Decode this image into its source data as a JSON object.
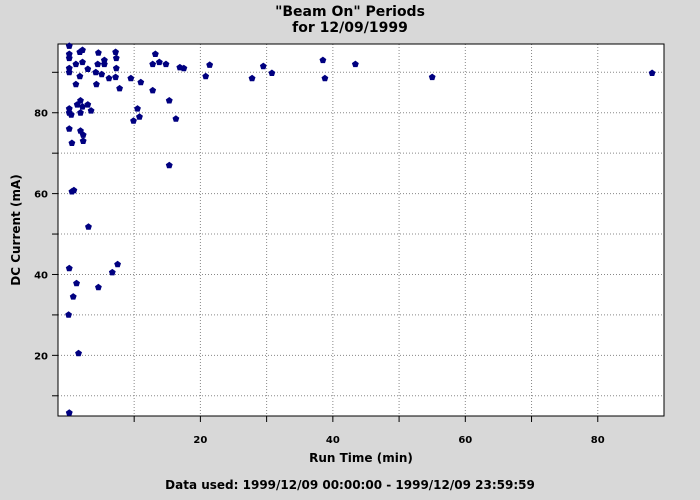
{
  "chart_data": {
    "type": "scatter",
    "title": "\"Beam On\" Periods",
    "subtitle": "for 12/09/1999",
    "xlabel": "Run Time (min)",
    "ylabel": "DC Current (mA)",
    "xlim": [
      -1.5,
      90
    ],
    "ylim": [
      5,
      97
    ],
    "x_ticks": [
      20,
      40,
      60,
      80
    ],
    "y_ticks": [
      20,
      40,
      60,
      80
    ],
    "grid": true,
    "marker_color": "#000080",
    "series": [
      {
        "points": [
          [
            0.2,
            96.5
          ],
          [
            0.2,
            94.5
          ],
          [
            0.2,
            93.5
          ],
          [
            0.2,
            91.0
          ],
          [
            0.2,
            90.0
          ],
          [
            0.2,
            81.0
          ],
          [
            0.2,
            80.0
          ],
          [
            0.2,
            76.0
          ],
          [
            0.2,
            41.5
          ],
          [
            0.1,
            30.0
          ],
          [
            0.2,
            5.8
          ],
          [
            0.5,
            79.5
          ],
          [
            0.6,
            72.5
          ],
          [
            0.6,
            60.5
          ],
          [
            0.9,
            60.8
          ],
          [
            0.8,
            34.5
          ],
          [
            1.2,
            92.0
          ],
          [
            1.2,
            87.0
          ],
          [
            1.4,
            82.0
          ],
          [
            1.3,
            37.8
          ],
          [
            1.6,
            20.5
          ],
          [
            1.8,
            95.0
          ],
          [
            1.8,
            89.0
          ],
          [
            1.9,
            83.0
          ],
          [
            1.9,
            80.0
          ],
          [
            1.9,
            75.5
          ],
          [
            2.2,
            95.5
          ],
          [
            2.2,
            92.5
          ],
          [
            2.2,
            81.5
          ],
          [
            2.3,
            74.5
          ],
          [
            2.3,
            73.0
          ],
          [
            3.0,
            90.8
          ],
          [
            3.0,
            82.0
          ],
          [
            3.1,
            51.8
          ],
          [
            3.5,
            80.5
          ],
          [
            4.2,
            90.0
          ],
          [
            4.3,
            87.0
          ],
          [
            4.5,
            92.0
          ],
          [
            4.6,
            94.8
          ],
          [
            4.6,
            36.8
          ],
          [
            5.1,
            89.5
          ],
          [
            5.5,
            93.0
          ],
          [
            5.5,
            92.0
          ],
          [
            6.2,
            88.5
          ],
          [
            6.7,
            40.5
          ],
          [
            7.2,
            95.0
          ],
          [
            7.3,
            93.5
          ],
          [
            7.3,
            91.0
          ],
          [
            7.2,
            88.8
          ],
          [
            7.5,
            42.5
          ],
          [
            7.8,
            86.0
          ],
          [
            9.5,
            88.5
          ],
          [
            9.9,
            78.0
          ],
          [
            10.5,
            81.0
          ],
          [
            10.8,
            79.0
          ],
          [
            11.0,
            87.5
          ],
          [
            12.8,
            92.0
          ],
          [
            12.8,
            85.5
          ],
          [
            13.2,
            94.5
          ],
          [
            13.8,
            92.5
          ],
          [
            14.8,
            92.0
          ],
          [
            15.3,
            83.0
          ],
          [
            15.3,
            67.0
          ],
          [
            16.3,
            78.5
          ],
          [
            16.9,
            91.2
          ],
          [
            17.5,
            91.0
          ],
          [
            20.8,
            89.0
          ],
          [
            21.4,
            91.8
          ],
          [
            27.8,
            88.5
          ],
          [
            29.5,
            91.5
          ],
          [
            30.8,
            89.8
          ],
          [
            38.5,
            93.0
          ],
          [
            38.8,
            88.5
          ],
          [
            43.4,
            92.0
          ],
          [
            55.0,
            88.8
          ],
          [
            88.2,
            89.8
          ]
        ]
      }
    ]
  },
  "footer": "Data used: 1999/12/09 00:00:00 - 1999/12/09 23:59:59"
}
